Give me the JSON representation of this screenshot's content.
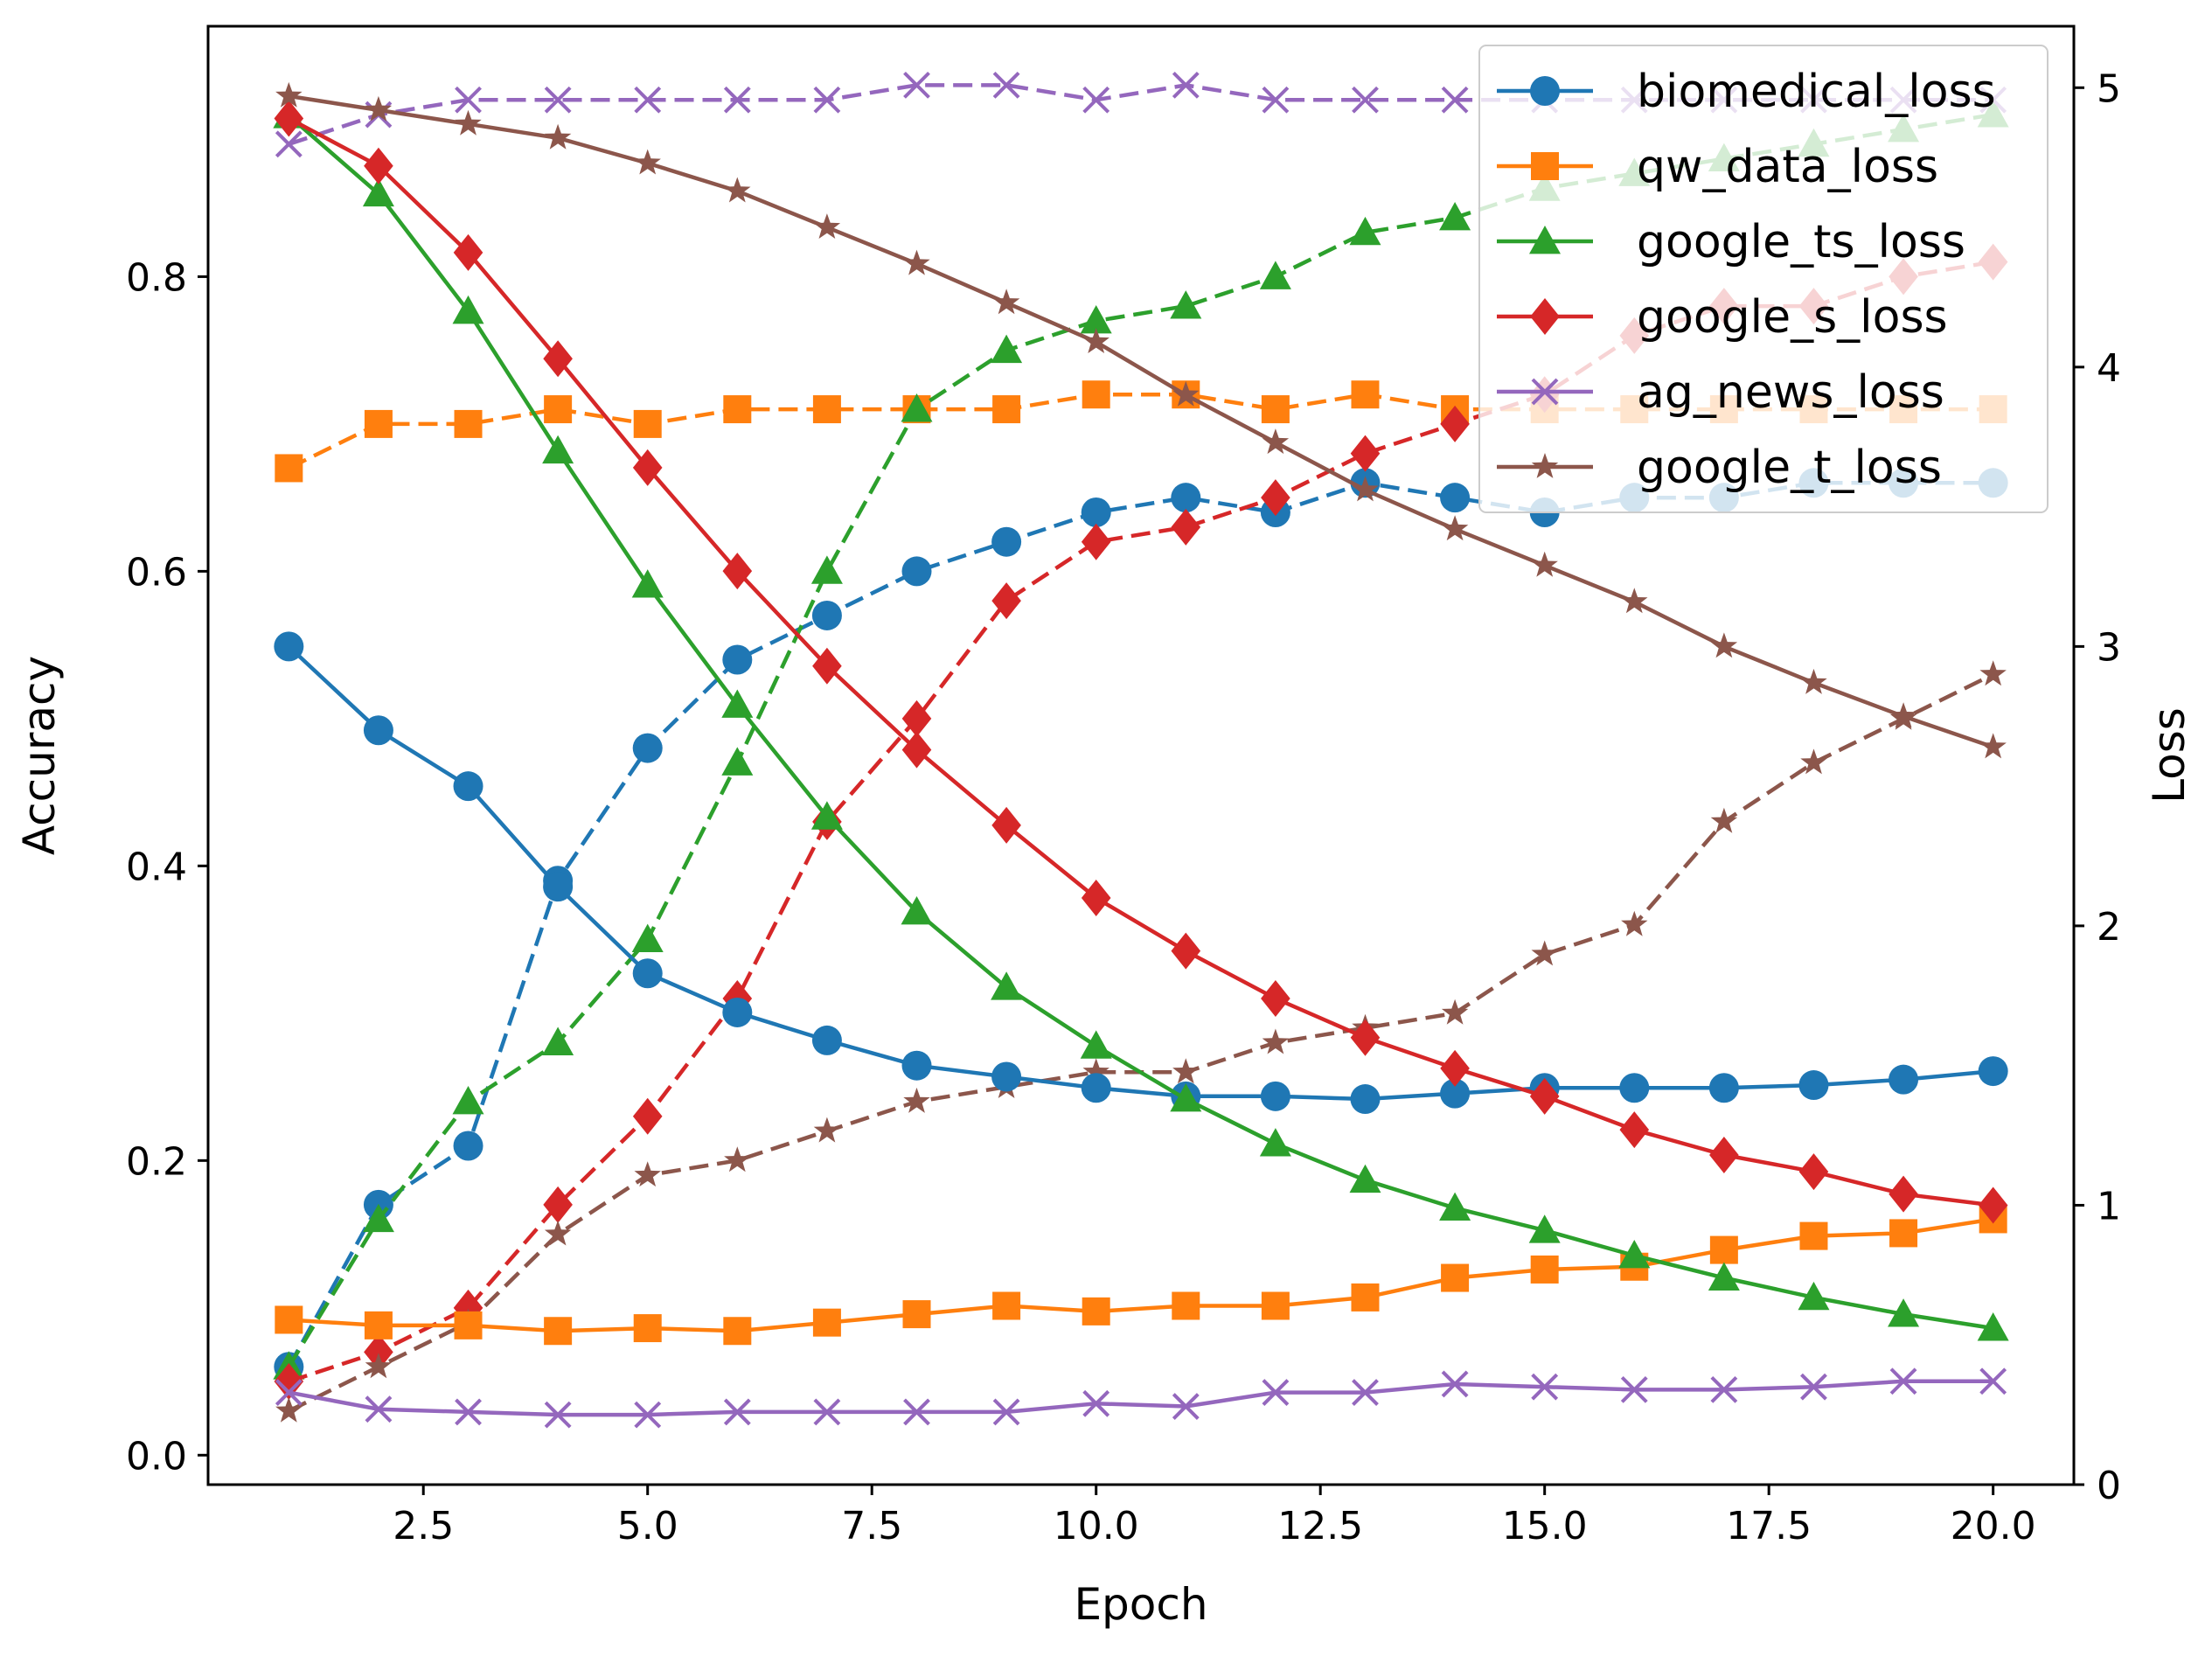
{
  "chart_data": {
    "type": "line",
    "title": "",
    "xlabel": "Epoch",
    "ylabel_left": "Accuracy",
    "ylabel_right": "Loss",
    "xlim": [
      0.1,
      20.9
    ],
    "ylim_left": [
      -0.02,
      0.97
    ],
    "ylim_right": [
      0,
      5.22
    ],
    "x_ticks": [
      2.5,
      5.0,
      7.5,
      10.0,
      12.5,
      15.0,
      17.5,
      20.0
    ],
    "x_tick_labels": [
      "2.5",
      "5.0",
      "7.5",
      "10.0",
      "12.5",
      "15.0",
      "17.5",
      "20.0"
    ],
    "y_left_ticks": [
      0.0,
      0.2,
      0.4,
      0.6,
      0.8
    ],
    "y_left_tick_labels": [
      "0.0",
      "0.2",
      "0.4",
      "0.6",
      "0.8"
    ],
    "y_right_ticks": [
      0,
      1,
      2,
      3,
      4,
      5
    ],
    "y_right_tick_labels": [
      "0",
      "1",
      "2",
      "3",
      "4",
      "5"
    ],
    "grid": false,
    "legend_position": "upper-right",
    "x": [
      1,
      2,
      3,
      4,
      5,
      6,
      7,
      8,
      9,
      10,
      11,
      12,
      13,
      14,
      15,
      16,
      17,
      18,
      19,
      20
    ],
    "series": [
      {
        "name": "biomedical_loss",
        "color": "#1f77b4",
        "marker": "circle",
        "loss": [
          3.0,
          2.7,
          2.5,
          2.14,
          1.83,
          1.69,
          1.59,
          1.5,
          1.46,
          1.42,
          1.39,
          1.39,
          1.38,
          1.4,
          1.42,
          1.42,
          1.42,
          1.43,
          1.45,
          1.48
        ],
        "accuracy": [
          0.06,
          0.17,
          0.21,
          0.39,
          0.48,
          0.54,
          0.57,
          0.6,
          0.62,
          0.64,
          0.65,
          0.64,
          0.66,
          0.65,
          0.64,
          0.65,
          0.65,
          0.66,
          0.66,
          0.66
        ]
      },
      {
        "name": "qw_data_loss",
        "color": "#ff7f0e",
        "marker": "square",
        "loss": [
          0.59,
          0.57,
          0.57,
          0.55,
          0.56,
          0.55,
          0.58,
          0.61,
          0.64,
          0.62,
          0.64,
          0.64,
          0.67,
          0.74,
          0.77,
          0.78,
          0.84,
          0.89,
          0.9,
          0.95
        ],
        "accuracy": [
          0.67,
          0.7,
          0.7,
          0.71,
          0.7,
          0.71,
          0.71,
          0.71,
          0.71,
          0.72,
          0.72,
          0.71,
          0.72,
          0.71,
          0.71,
          0.71,
          0.71,
          0.71,
          0.71,
          0.71
        ]
      },
      {
        "name": "google_ts_loss",
        "color": "#2ca02c",
        "marker": "triangle",
        "loss": [
          4.9,
          4.62,
          4.2,
          3.7,
          3.22,
          2.79,
          2.39,
          2.05,
          1.78,
          1.57,
          1.38,
          1.22,
          1.09,
          0.99,
          0.91,
          0.82,
          0.74,
          0.67,
          0.61,
          0.56
        ],
        "accuracy": [
          0.06,
          0.16,
          0.24,
          0.28,
          0.35,
          0.47,
          0.6,
          0.71,
          0.75,
          0.77,
          0.78,
          0.8,
          0.83,
          0.84,
          0.86,
          0.87,
          0.88,
          0.89,
          0.9,
          0.91
        ]
      },
      {
        "name": "google_s_loss",
        "color": "#d62728",
        "marker": "diamond",
        "loss": [
          4.89,
          4.72,
          4.41,
          4.03,
          3.64,
          3.27,
          2.93,
          2.63,
          2.36,
          2.1,
          1.91,
          1.74,
          1.6,
          1.49,
          1.39,
          1.27,
          1.18,
          1.12,
          1.04,
          1.0
        ],
        "accuracy": [
          0.05,
          0.07,
          0.1,
          0.17,
          0.23,
          0.31,
          0.43,
          0.5,
          0.58,
          0.62,
          0.63,
          0.65,
          0.68,
          0.7,
          0.72,
          0.76,
          0.78,
          0.78,
          0.8,
          0.81
        ]
      },
      {
        "name": "ag_news_loss",
        "color": "#9467bd",
        "marker": "x",
        "loss": [
          0.33,
          0.27,
          0.26,
          0.25,
          0.25,
          0.26,
          0.26,
          0.26,
          0.26,
          0.29,
          0.28,
          0.33,
          0.33,
          0.36,
          0.35,
          0.34,
          0.34,
          0.35,
          0.37,
          0.37
        ],
        "accuracy": [
          0.89,
          0.91,
          0.92,
          0.92,
          0.92,
          0.92,
          0.92,
          0.93,
          0.93,
          0.92,
          0.93,
          0.92,
          0.92,
          0.92,
          0.92,
          0.92,
          0.92,
          0.92,
          0.92,
          0.92
        ]
      },
      {
        "name": "google_t_loss",
        "color": "#8c564b",
        "marker": "star",
        "loss": [
          4.97,
          4.92,
          4.87,
          4.82,
          4.73,
          4.63,
          4.5,
          4.37,
          4.23,
          4.09,
          3.9,
          3.73,
          3.56,
          3.42,
          3.29,
          3.16,
          3.0,
          2.87,
          2.75,
          2.64
        ],
        "accuracy": [
          0.03,
          0.06,
          0.09,
          0.15,
          0.19,
          0.2,
          0.22,
          0.24,
          0.25,
          0.26,
          0.26,
          0.28,
          0.29,
          0.3,
          0.34,
          0.36,
          0.43,
          0.47,
          0.5,
          0.53
        ]
      }
    ]
  }
}
